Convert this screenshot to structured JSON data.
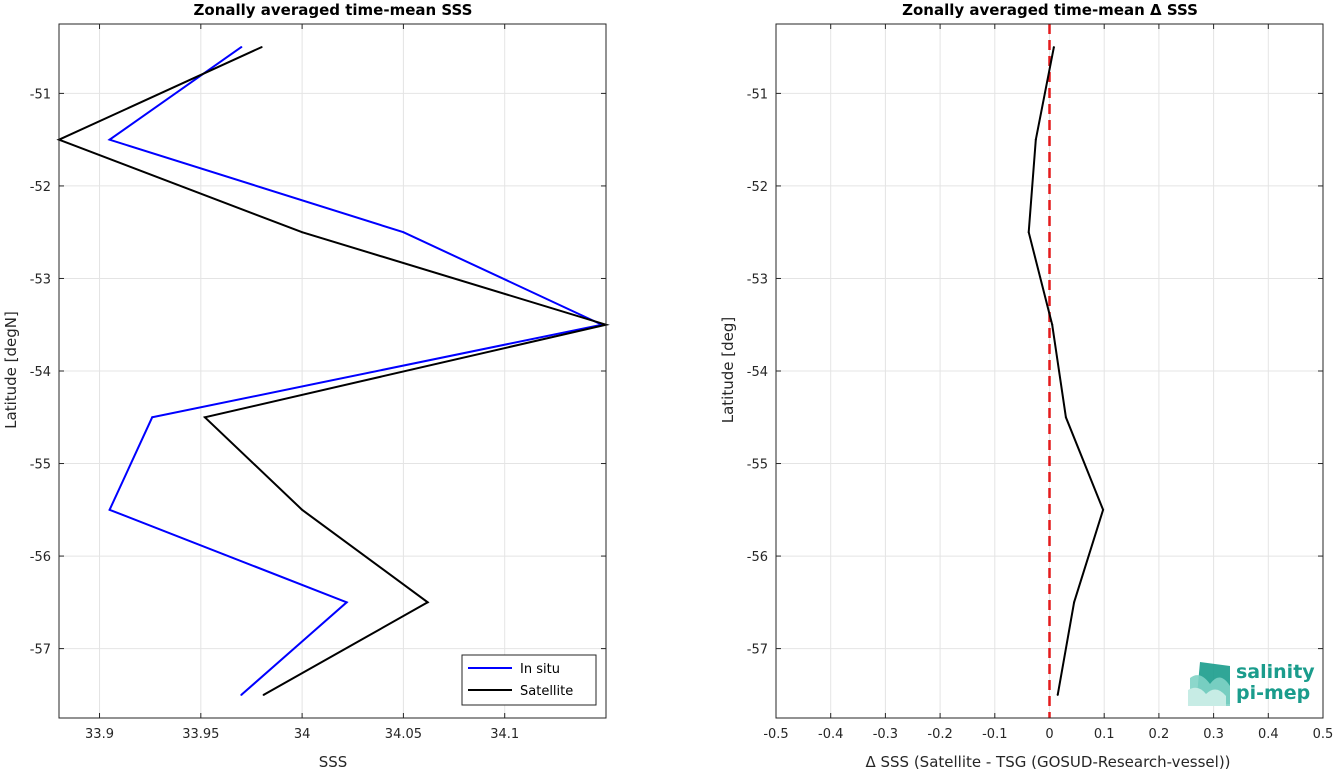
{
  "chart_data": [
    {
      "type": "line",
      "title": "Zonally averaged time-mean SSS",
      "xlabel": "SSS",
      "ylabel": "Latitude [degN]",
      "xlim": [
        33.88,
        34.15
      ],
      "ylim": [
        -57.75,
        -50.25
      ],
      "x_ticks": [
        33.9,
        33.95,
        34.0,
        34.05,
        34.1
      ],
      "x_tick_labels": [
        "33.9",
        "33.95",
        "34",
        "34.05",
        "34.1"
      ],
      "y_ticks": [
        -57,
        -56,
        -55,
        -54,
        -53,
        -52,
        -51
      ],
      "y_tick_labels": [
        "-57",
        "-56",
        "-55",
        "-54",
        "-53",
        "-52",
        "-51"
      ],
      "grid": true,
      "legend": "bottom-right",
      "series": [
        {
          "name": "In situ",
          "color": "#0000ff",
          "points": [
            {
              "x": 33.97,
              "y": -50.5
            },
            {
              "x": 33.905,
              "y": -51.5
            },
            {
              "x": 34.05,
              "y": -52.5
            },
            {
              "x": 34.148,
              "y": -53.5
            },
            {
              "x": 33.926,
              "y": -54.5
            },
            {
              "x": 33.905,
              "y": -55.5
            },
            {
              "x": 34.022,
              "y": -56.5
            },
            {
              "x": 33.97,
              "y": -57.5
            }
          ]
        },
        {
          "name": "Satellite",
          "color": "#000000",
          "points": [
            {
              "x": 33.98,
              "y": -50.5
            },
            {
              "x": 33.88,
              "y": -51.5
            },
            {
              "x": 34.0,
              "y": -52.5
            },
            {
              "x": 34.15,
              "y": -53.5
            },
            {
              "x": 33.952,
              "y": -54.5
            },
            {
              "x": 34.0,
              "y": -55.5
            },
            {
              "x": 34.062,
              "y": -56.5
            },
            {
              "x": 33.981,
              "y": -57.5
            }
          ]
        }
      ]
    },
    {
      "type": "line",
      "title": "Zonally averaged time-mean Δ SSS",
      "xlabel": "Δ SSS (Satellite - TSG (GOSUD-Research-vessel))",
      "ylabel": "Latitude [deg]",
      "xlim": [
        -0.5,
        0.5
      ],
      "ylim": [
        -57.75,
        -50.25
      ],
      "x_ticks": [
        -0.5,
        -0.4,
        -0.3,
        -0.2,
        -0.1,
        0,
        0.1,
        0.2,
        0.3,
        0.4,
        0.5
      ],
      "x_tick_labels": [
        "-0.5",
        "-0.4",
        "-0.3",
        "-0.2",
        "-0.1",
        "0",
        "0.1",
        "0.2",
        "0.3",
        "0.4",
        "0.5"
      ],
      "y_ticks": [
        -57,
        -56,
        -55,
        -54,
        -53,
        -52,
        -51
      ],
      "y_tick_labels": [
        "-57",
        "-56",
        "-55",
        "-54",
        "-53",
        "-52",
        "-51"
      ],
      "grid": true,
      "reference_line": {
        "x": 0,
        "color": "#e41a1c",
        "style": "dashed"
      },
      "series": [
        {
          "color": "#000000",
          "points": [
            {
              "x": 0.008,
              "y": -50.5
            },
            {
              "x": -0.025,
              "y": -51.5
            },
            {
              "x": -0.038,
              "y": -52.5
            },
            {
              "x": 0.005,
              "y": -53.5
            },
            {
              "x": 0.03,
              "y": -54.5
            },
            {
              "x": 0.098,
              "y": -55.5
            },
            {
              "x": 0.045,
              "y": -56.5
            },
            {
              "x": 0.015,
              "y": -57.5
            }
          ]
        }
      ]
    }
  ],
  "logo": {
    "line1": "salinity",
    "line2": "pi-mep",
    "color": "#1a9c8c"
  }
}
